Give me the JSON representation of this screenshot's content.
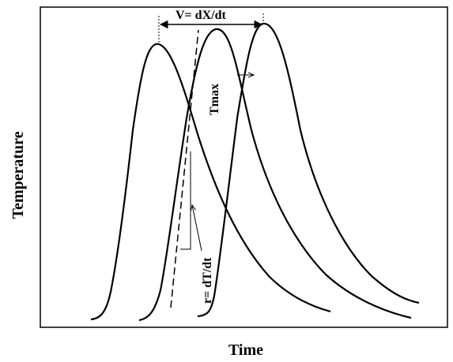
{
  "labels": {
    "x_axis": "Time",
    "y_axis": "Temperature",
    "velocity": "V= dX/dt",
    "peak": "Tmax",
    "rate": "r= dT/dt"
  },
  "colors": {
    "stroke": "#000000",
    "background": "#ffffff"
  }
}
